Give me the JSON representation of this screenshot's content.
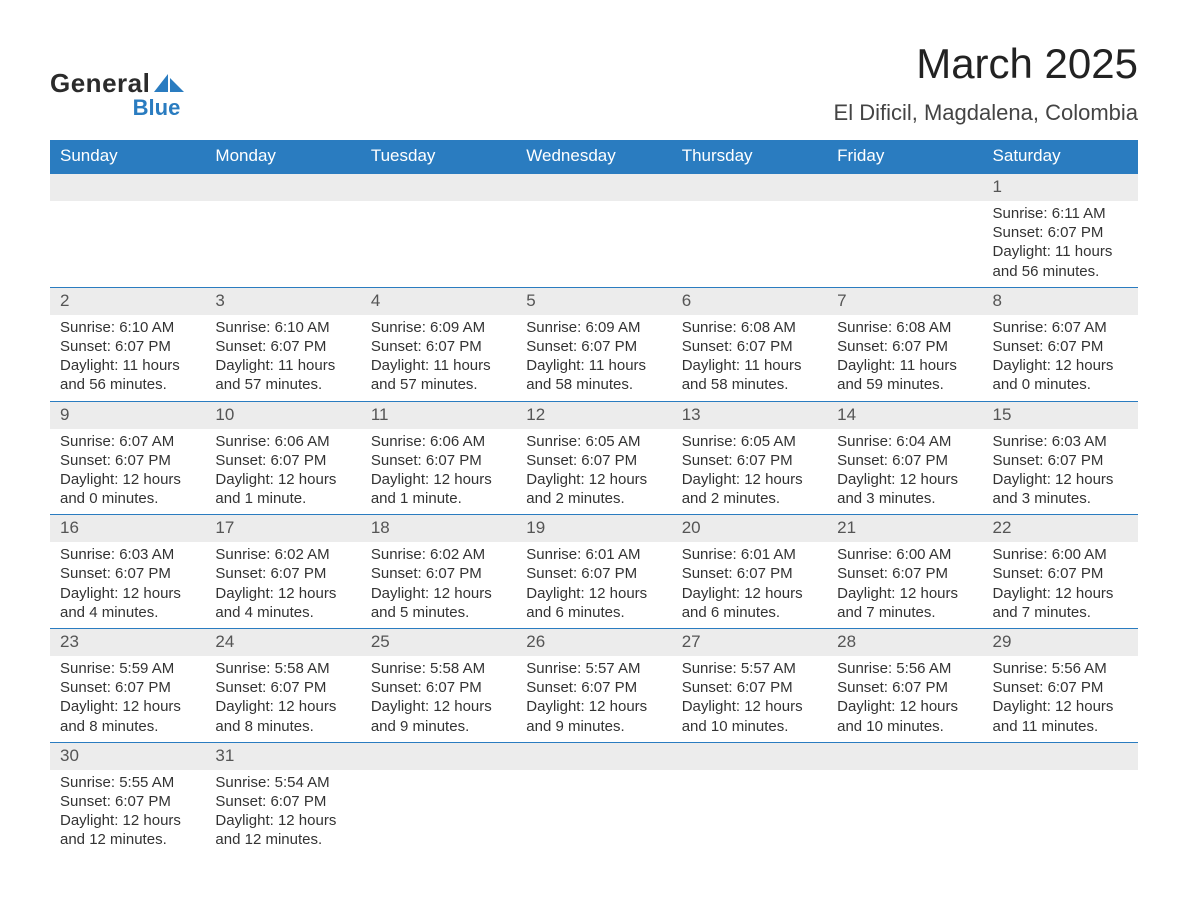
{
  "brand": {
    "line1": "General",
    "line2": "Blue",
    "brand_color": "#2a7cc0"
  },
  "header": {
    "title": "March 2025",
    "subtitle": "El Dificil, Magdalena, Colombia"
  },
  "colors": {
    "header_bg": "#2a7cc0",
    "header_text": "#ffffff",
    "daynum_bg": "#ececec",
    "row_divider": "#2a7cc0",
    "body_text": "#333333",
    "page_bg": "#ffffff"
  },
  "typography": {
    "title_fontsize": 42,
    "subtitle_fontsize": 22,
    "weekday_fontsize": 17,
    "daynum_fontsize": 17,
    "body_fontsize": 15,
    "font_family": "Arial"
  },
  "labels": {
    "sunrise": "Sunrise:",
    "sunset": "Sunset:",
    "daylight": "Daylight:"
  },
  "weekdays": [
    "Sunday",
    "Monday",
    "Tuesday",
    "Wednesday",
    "Thursday",
    "Friday",
    "Saturday"
  ],
  "weeks": [
    [
      {
        "blank": true
      },
      {
        "blank": true
      },
      {
        "blank": true
      },
      {
        "blank": true
      },
      {
        "blank": true
      },
      {
        "blank": true
      },
      {
        "day": "1",
        "sunrise": "6:11 AM",
        "sunset": "6:07 PM",
        "daylight": "11 hours and 56 minutes."
      }
    ],
    [
      {
        "day": "2",
        "sunrise": "6:10 AM",
        "sunset": "6:07 PM",
        "daylight": "11 hours and 56 minutes."
      },
      {
        "day": "3",
        "sunrise": "6:10 AM",
        "sunset": "6:07 PM",
        "daylight": "11 hours and 57 minutes."
      },
      {
        "day": "4",
        "sunrise": "6:09 AM",
        "sunset": "6:07 PM",
        "daylight": "11 hours and 57 minutes."
      },
      {
        "day": "5",
        "sunrise": "6:09 AM",
        "sunset": "6:07 PM",
        "daylight": "11 hours and 58 minutes."
      },
      {
        "day": "6",
        "sunrise": "6:08 AM",
        "sunset": "6:07 PM",
        "daylight": "11 hours and 58 minutes."
      },
      {
        "day": "7",
        "sunrise": "6:08 AM",
        "sunset": "6:07 PM",
        "daylight": "11 hours and 59 minutes."
      },
      {
        "day": "8",
        "sunrise": "6:07 AM",
        "sunset": "6:07 PM",
        "daylight": "12 hours and 0 minutes."
      }
    ],
    [
      {
        "day": "9",
        "sunrise": "6:07 AM",
        "sunset": "6:07 PM",
        "daylight": "12 hours and 0 minutes."
      },
      {
        "day": "10",
        "sunrise": "6:06 AM",
        "sunset": "6:07 PM",
        "daylight": "12 hours and 1 minute."
      },
      {
        "day": "11",
        "sunrise": "6:06 AM",
        "sunset": "6:07 PM",
        "daylight": "12 hours and 1 minute."
      },
      {
        "day": "12",
        "sunrise": "6:05 AM",
        "sunset": "6:07 PM",
        "daylight": "12 hours and 2 minutes."
      },
      {
        "day": "13",
        "sunrise": "6:05 AM",
        "sunset": "6:07 PM",
        "daylight": "12 hours and 2 minutes."
      },
      {
        "day": "14",
        "sunrise": "6:04 AM",
        "sunset": "6:07 PM",
        "daylight": "12 hours and 3 minutes."
      },
      {
        "day": "15",
        "sunrise": "6:03 AM",
        "sunset": "6:07 PM",
        "daylight": "12 hours and 3 minutes."
      }
    ],
    [
      {
        "day": "16",
        "sunrise": "6:03 AM",
        "sunset": "6:07 PM",
        "daylight": "12 hours and 4 minutes."
      },
      {
        "day": "17",
        "sunrise": "6:02 AM",
        "sunset": "6:07 PM",
        "daylight": "12 hours and 4 minutes."
      },
      {
        "day": "18",
        "sunrise": "6:02 AM",
        "sunset": "6:07 PM",
        "daylight": "12 hours and 5 minutes."
      },
      {
        "day": "19",
        "sunrise": "6:01 AM",
        "sunset": "6:07 PM",
        "daylight": "12 hours and 6 minutes."
      },
      {
        "day": "20",
        "sunrise": "6:01 AM",
        "sunset": "6:07 PM",
        "daylight": "12 hours and 6 minutes."
      },
      {
        "day": "21",
        "sunrise": "6:00 AM",
        "sunset": "6:07 PM",
        "daylight": "12 hours and 7 minutes."
      },
      {
        "day": "22",
        "sunrise": "6:00 AM",
        "sunset": "6:07 PM",
        "daylight": "12 hours and 7 minutes."
      }
    ],
    [
      {
        "day": "23",
        "sunrise": "5:59 AM",
        "sunset": "6:07 PM",
        "daylight": "12 hours and 8 minutes."
      },
      {
        "day": "24",
        "sunrise": "5:58 AM",
        "sunset": "6:07 PM",
        "daylight": "12 hours and 8 minutes."
      },
      {
        "day": "25",
        "sunrise": "5:58 AM",
        "sunset": "6:07 PM",
        "daylight": "12 hours and 9 minutes."
      },
      {
        "day": "26",
        "sunrise": "5:57 AM",
        "sunset": "6:07 PM",
        "daylight": "12 hours and 9 minutes."
      },
      {
        "day": "27",
        "sunrise": "5:57 AM",
        "sunset": "6:07 PM",
        "daylight": "12 hours and 10 minutes."
      },
      {
        "day": "28",
        "sunrise": "5:56 AM",
        "sunset": "6:07 PM",
        "daylight": "12 hours and 10 minutes."
      },
      {
        "day": "29",
        "sunrise": "5:56 AM",
        "sunset": "6:07 PM",
        "daylight": "12 hours and 11 minutes."
      }
    ],
    [
      {
        "day": "30",
        "sunrise": "5:55 AM",
        "sunset": "6:07 PM",
        "daylight": "12 hours and 12 minutes."
      },
      {
        "day": "31",
        "sunrise": "5:54 AM",
        "sunset": "6:07 PM",
        "daylight": "12 hours and 12 minutes."
      },
      {
        "blank": true
      },
      {
        "blank": true
      },
      {
        "blank": true
      },
      {
        "blank": true
      },
      {
        "blank": true
      }
    ]
  ]
}
